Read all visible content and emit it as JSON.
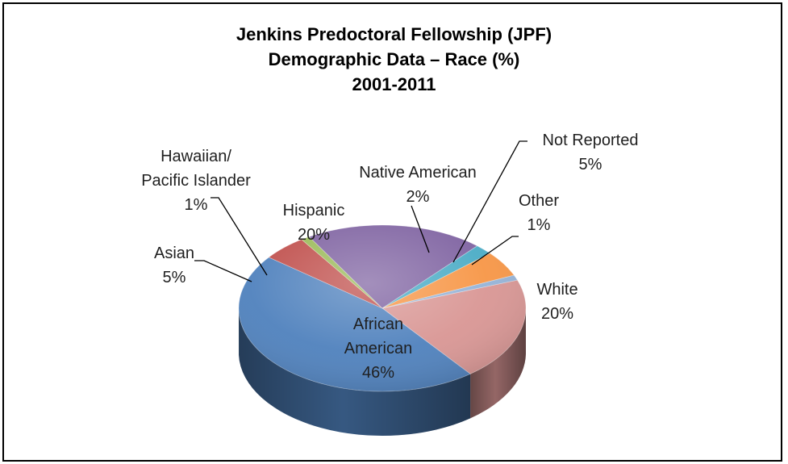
{
  "chart_data": {
    "type": "pie",
    "title": [
      "Jenkins Predoctoral Fellowship (JPF)",
      "Demographic Data – Race (%)",
      "2001-2011"
    ],
    "slices": [
      {
        "label": [
          "White"
        ],
        "value": 20,
        "value_label": "20%",
        "color": "#d99694"
      },
      {
        "label": [
          "African",
          "American"
        ],
        "value": 46,
        "value_label": "46%",
        "color": "#4f81bd"
      },
      {
        "label": [
          "Asian"
        ],
        "value": 5,
        "value_label": "5%",
        "color": "#c0504d"
      },
      {
        "label": [
          "Hawaiian/",
          "Pacific Islander"
        ],
        "value": 1,
        "value_label": "1%",
        "color": "#9bbb59"
      },
      {
        "label": [
          "Hispanic"
        ],
        "value": 20,
        "value_label": "20%",
        "color": "#8064a2"
      },
      {
        "label": [
          "Native American"
        ],
        "value": 2,
        "value_label": "2%",
        "color": "#4bacc6"
      },
      {
        "label": [
          "Not Reported"
        ],
        "value": 5,
        "value_label": "5%",
        "color": "#f79646"
      },
      {
        "label": [
          "Other"
        ],
        "value": 1,
        "value_label": "1%",
        "color": "#95b3d7"
      }
    ]
  }
}
